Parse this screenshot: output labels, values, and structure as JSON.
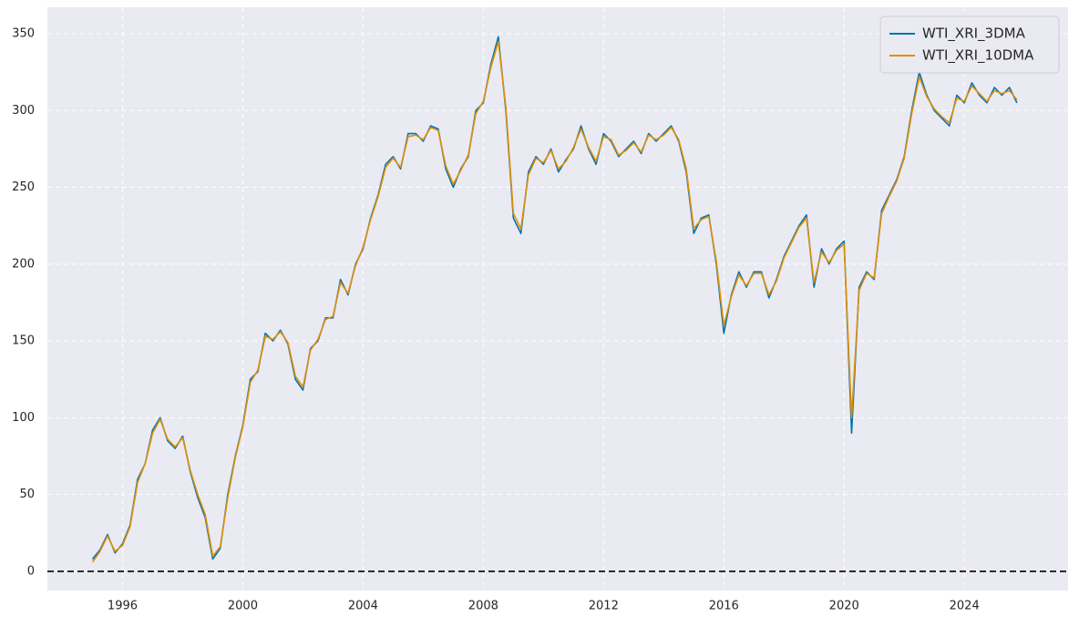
{
  "chart_data": {
    "type": "line",
    "x": [
      1995.0,
      1995.25,
      1995.5,
      1995.75,
      1996.0,
      1996.25,
      1996.5,
      1996.75,
      1997.0,
      1997.25,
      1997.5,
      1997.75,
      1998.0,
      1998.25,
      1998.5,
      1998.75,
      1999.0,
      1999.25,
      1999.5,
      1999.75,
      2000.0,
      2000.25,
      2000.5,
      2000.75,
      2001.0,
      2001.25,
      2001.5,
      2001.75,
      2002.0,
      2002.25,
      2002.5,
      2002.75,
      2003.0,
      2003.25,
      2003.5,
      2003.75,
      2004.0,
      2004.25,
      2004.5,
      2004.75,
      2005.0,
      2005.25,
      2005.5,
      2005.75,
      2006.0,
      2006.25,
      2006.5,
      2006.75,
      2007.0,
      2007.25,
      2007.5,
      2007.75,
      2008.0,
      2008.25,
      2008.5,
      2008.75,
      2009.0,
      2009.25,
      2009.5,
      2009.75,
      2010.0,
      2010.25,
      2010.5,
      2010.75,
      2011.0,
      2011.25,
      2011.5,
      2011.75,
      2012.0,
      2012.25,
      2012.5,
      2012.75,
      2013.0,
      2013.25,
      2013.5,
      2013.75,
      2014.0,
      2014.25,
      2014.5,
      2014.75,
      2015.0,
      2015.25,
      2015.5,
      2015.75,
      2016.0,
      2016.25,
      2016.5,
      2016.75,
      2017.0,
      2017.25,
      2017.5,
      2017.75,
      2018.0,
      2018.25,
      2018.5,
      2018.75,
      2019.0,
      2019.25,
      2019.5,
      2019.75,
      2020.0,
      2020.25,
      2020.5,
      2020.75,
      2021.0,
      2021.25,
      2021.5,
      2021.75,
      2022.0,
      2022.25,
      2022.5,
      2022.75,
      2023.0,
      2023.25,
      2023.5,
      2023.75,
      2024.0,
      2024.25,
      2024.5,
      2024.75,
      2025.0,
      2025.25,
      2025.5,
      2025.75
    ],
    "series": [
      {
        "name": "WTI_XRI_3DMA",
        "color": "#0173b2",
        "values": [
          8,
          14,
          24,
          12,
          18,
          30,
          60,
          70,
          92,
          100,
          85,
          80,
          88,
          65,
          48,
          35,
          8,
          15,
          50,
          75,
          95,
          125,
          130,
          155,
          150,
          157,
          148,
          125,
          118,
          145,
          150,
          165,
          165,
          190,
          180,
          200,
          210,
          230,
          245,
          265,
          270,
          262,
          285,
          285,
          280,
          290,
          288,
          262,
          250,
          262,
          270,
          300,
          305,
          330,
          348,
          300,
          230,
          220,
          260,
          270,
          265,
          275,
          260,
          268,
          275,
          290,
          275,
          265,
          285,
          280,
          270,
          275,
          280,
          272,
          285,
          280,
          285,
          290,
          280,
          260,
          220,
          230,
          232,
          200,
          155,
          180,
          195,
          185,
          195,
          195,
          178,
          190,
          205,
          215,
          225,
          232,
          185,
          210,
          200,
          210,
          215,
          90,
          185,
          195,
          190,
          235,
          245,
          255,
          270,
          300,
          325,
          310,
          300,
          295,
          290,
          310,
          305,
          318,
          310,
          305,
          315,
          310,
          315,
          305
        ]
      },
      {
        "name": "WTI_XRI_10DMA",
        "color": "#de8f05",
        "values": [
          6,
          13,
          23,
          13,
          17,
          29,
          58,
          70,
          90,
          99,
          86,
          81,
          87,
          66,
          50,
          37,
          10,
          16,
          48,
          74,
          94,
          123,
          131,
          153,
          151,
          156,
          149,
          127,
          120,
          144,
          151,
          164,
          166,
          188,
          181,
          199,
          211,
          229,
          244,
          263,
          269,
          263,
          283,
          284,
          281,
          289,
          287,
          264,
          252,
          261,
          271,
          298,
          306,
          328,
          345,
          302,
          233,
          223,
          258,
          269,
          266,
          274,
          262,
          267,
          276,
          288,
          276,
          267,
          283,
          281,
          271,
          274,
          279,
          273,
          284,
          281,
          284,
          289,
          281,
          262,
          223,
          229,
          231,
          202,
          160,
          179,
          193,
          186,
          194,
          194,
          180,
          189,
          204,
          214,
          224,
          230,
          188,
          208,
          201,
          209,
          213,
          100,
          183,
          194,
          191,
          233,
          244,
          254,
          269,
          298,
          322,
          309,
          301,
          296,
          292,
          308,
          306,
          316,
          311,
          306,
          313,
          311,
          313,
          307
        ]
      }
    ],
    "xlim": [
      1993.5,
      2027.45
    ],
    "xticks": [
      1996,
      2000,
      2004,
      2008,
      2012,
      2016,
      2020,
      2024
    ],
    "ylim": [
      -12.5,
      367.2
    ],
    "yticks": [
      0,
      50,
      100,
      150,
      200,
      250,
      300,
      350
    ],
    "reference_line": 0,
    "grid": true,
    "legend": "upper right"
  }
}
